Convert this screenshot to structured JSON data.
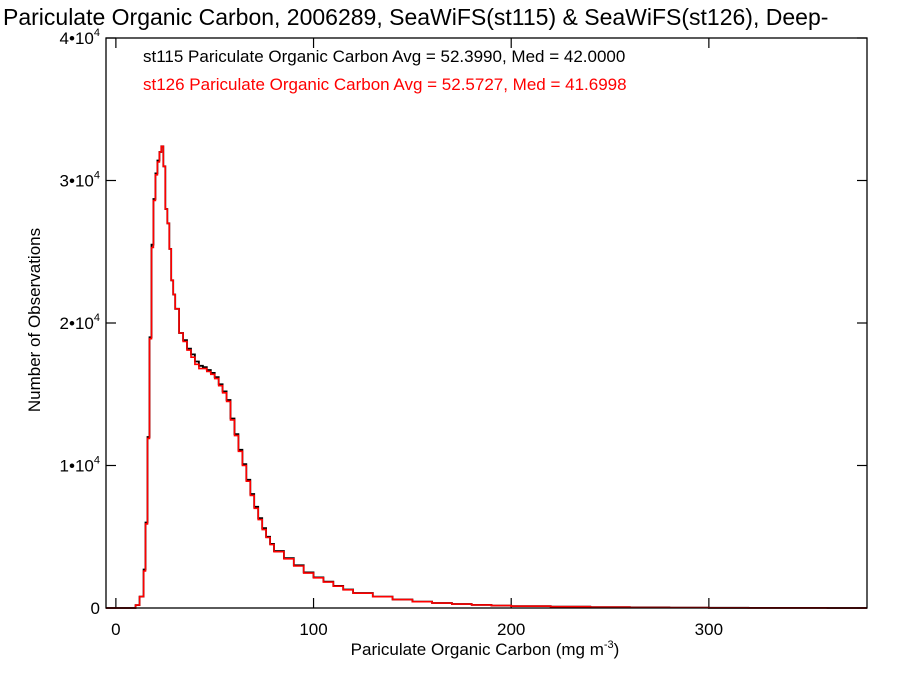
{
  "chart_data": {
    "type": "histogram-step",
    "title": "Pariculate Organic Carbon, 2006289, SeaWiFS(st115) & SeaWiFS(st126), Deep-",
    "xlabel": "Pariculate Organic Carbon (mg m",
    "xlabel_sup": "-3",
    "xlabel_end": ")",
    "ylabel": "Number of Observations",
    "xlim": [
      -5,
      380
    ],
    "ylim": [
      0,
      40000
    ],
    "x_ticks": [
      {
        "value": 0,
        "label": "0"
      },
      {
        "value": 100,
        "label": "100"
      },
      {
        "value": 200,
        "label": "200"
      },
      {
        "value": 300,
        "label": "300"
      }
    ],
    "y_ticks": [
      {
        "value": 0,
        "label": "0",
        "sup": ""
      },
      {
        "value": 10000,
        "label": "1•10",
        "sup": "4"
      },
      {
        "value": 20000,
        "label": "2•10",
        "sup": "4"
      },
      {
        "value": 30000,
        "label": "3•10",
        "sup": "4"
      },
      {
        "value": 40000,
        "label": "4•10",
        "sup": "4"
      }
    ],
    "x": [
      -5,
      10,
      12,
      14,
      15,
      16,
      17,
      18,
      19,
      20,
      21,
      22,
      23,
      24,
      25,
      26,
      27,
      28,
      29,
      30,
      32,
      34,
      36,
      38,
      40,
      42,
      44,
      46,
      48,
      50,
      52,
      54,
      56,
      58,
      60,
      62,
      64,
      66,
      68,
      70,
      72,
      74,
      76,
      78,
      80,
      85,
      90,
      95,
      100,
      105,
      110,
      115,
      120,
      130,
      140,
      150,
      160,
      170,
      180,
      190,
      200,
      220,
      240,
      260,
      280,
      300,
      320,
      340,
      360,
      380
    ],
    "series": [
      {
        "name": "st115",
        "color": "#000000",
        "values": [
          0,
          200,
          800,
          2700,
          6000,
          12000,
          19000,
          25500,
          28700,
          30500,
          31400,
          32000,
          32400,
          31000,
          28000,
          27000,
          25200,
          23000,
          22000,
          21000,
          19300,
          18800,
          18200,
          17800,
          17300,
          17000,
          16900,
          16700,
          16500,
          16200,
          15700,
          15200,
          14600,
          13300,
          12200,
          11100,
          10100,
          9000,
          8000,
          7100,
          6300,
          5600,
          5000,
          4500,
          4000,
          3500,
          3000,
          2500,
          2150,
          1850,
          1550,
          1300,
          1050,
          800,
          600,
          450,
          350,
          280,
          220,
          170,
          130,
          90,
          60,
          40,
          25,
          15,
          10,
          5,
          3,
          2
        ],
        "stats": "st115 Pariculate Organic Carbon Avg = 52.3990, Med = 42.0000"
      },
      {
        "name": "st126",
        "color": "#ff0000",
        "values": [
          0,
          200,
          800,
          2600,
          5900,
          11900,
          18900,
          25300,
          28600,
          30400,
          31300,
          32000,
          32400,
          31000,
          28000,
          27000,
          25200,
          23000,
          22000,
          21000,
          19300,
          18700,
          18100,
          17600,
          17100,
          16800,
          16800,
          16600,
          16400,
          16100,
          15600,
          15100,
          14500,
          13200,
          12100,
          11000,
          10000,
          8900,
          7900,
          7000,
          6200,
          5500,
          4950,
          4450,
          3950,
          3450,
          2950,
          2450,
          2120,
          1820,
          1530,
          1280,
          1040,
          790,
          590,
          440,
          345,
          275,
          215,
          165,
          125,
          88,
          58,
          38,
          24,
          14,
          9,
          5,
          3,
          2
        ],
        "stats": "st126 Pariculate Organic Carbon Avg = 52.5727, Med = 41.6998"
      }
    ]
  }
}
